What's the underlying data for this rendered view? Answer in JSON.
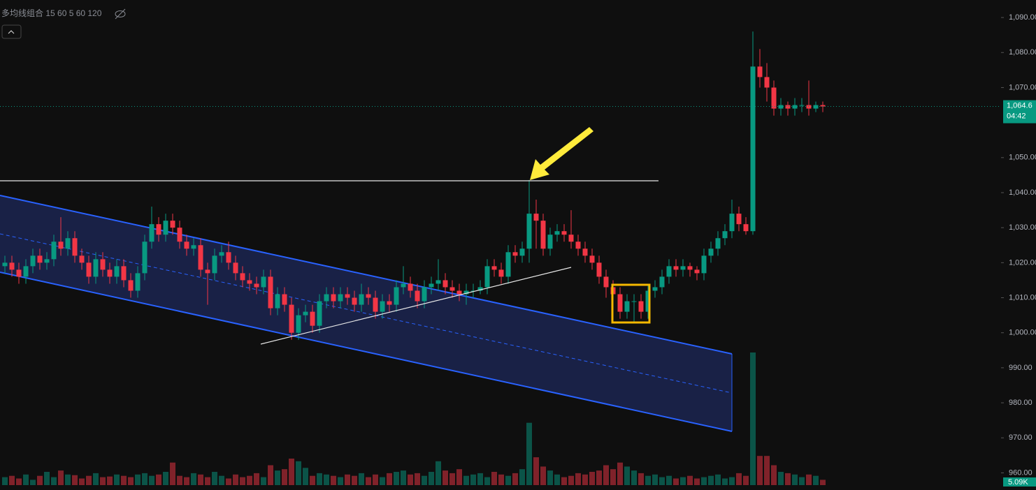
{
  "chart_data": {
    "type": "candlestick",
    "indicator_label": "多均线组合 15 60 5 60 120",
    "open": [
      1019,
      1020,
      1018,
      1016,
      1019,
      1022,
      1020,
      1021,
      1026,
      1024,
      1027,
      1022,
      1020,
      1016,
      1021,
      1018,
      1016,
      1019,
      1015,
      1012,
      1017,
      1026,
      1031,
      1028,
      1032,
      1030,
      1026,
      1024,
      1025,
      1018,
      1017,
      1022,
      1023,
      1020,
      1017,
      1015,
      1014,
      1013,
      1016,
      1007,
      1011,
      1008,
      1000,
      1005,
      1006,
      1002,
      1009,
      1011,
      1009,
      1011,
      1010,
      1008,
      1011,
      1010,
      1006,
      1009,
      1008,
      1013,
      1014,
      1012,
      1009,
      1013,
      1014,
      1015,
      1013,
      1012,
      1011,
      1012,
      1012,
      1013,
      1019,
      1018,
      1016,
      1023,
      1022,
      1024,
      1034,
      1032,
      1024,
      1028,
      1029,
      1028,
      1026,
      1024,
      1022,
      1020,
      1016,
      1013,
      1011,
      1006,
      1009,
      1009,
      1006,
      1012,
      1013,
      1016,
      1019,
      1018,
      1019,
      1018,
      1017,
      1022,
      1024,
      1027,
      1029,
      1034,
      1031,
      1029,
      1076,
      1073,
      1070,
      1064,
      1065,
      1064,
      1065,
      1065,
      1064,
      1065
    ],
    "high": [
      1022,
      1022,
      1020,
      1021,
      1024,
      1024,
      1023,
      1028,
      1033,
      1029,
      1029,
      1024,
      1022,
      1023,
      1023,
      1020,
      1021,
      1021,
      1017,
      1019,
      1028,
      1036,
      1033,
      1034,
      1034,
      1032,
      1028,
      1027,
      1027,
      1020,
      1024,
      1025,
      1026,
      1022,
      1019,
      1017,
      1016,
      1018,
      1018,
      1013,
      1013,
      1010,
      1007,
      1008,
      1008,
      1011,
      1013,
      1013,
      1013,
      1013,
      1012,
      1014,
      1013,
      1012,
      1011,
      1011,
      1015,
      1019,
      1016,
      1014,
      1015,
      1016,
      1021,
      1017,
      1015,
      1014,
      1014,
      1014,
      1015,
      1021,
      1021,
      1020,
      1025,
      1025,
      1026,
      1043.6,
      1038,
      1034,
      1030,
      1031,
      1031,
      1035,
      1028,
      1026,
      1024,
      1022,
      1018,
      1015,
      1013,
      1011,
      1011,
      1011,
      1014,
      1015,
      1018,
      1021,
      1021,
      1021,
      1020,
      1019,
      1024,
      1026,
      1029,
      1031,
      1038,
      1036,
      1033,
      1086,
      1081,
      1077,
      1072,
      1067,
      1066,
      1067,
      1067,
      1072,
      1066,
      1066
    ],
    "low": [
      1017,
      1016,
      1014,
      1014,
      1017,
      1018,
      1018,
      1019,
      1022,
      1022,
      1020,
      1018,
      1014,
      1014,
      1016,
      1014,
      1014,
      1013,
      1010,
      1010,
      1015,
      1024,
      1026,
      1026,
      1028,
      1024,
      1022,
      1022,
      1016,
      1008,
      1015,
      1020,
      1018,
      1015,
      1013,
      1012,
      1011,
      1011,
      1005,
      1005,
      1006,
      998,
      998,
      1003,
      1000,
      1000,
      1007,
      1007,
      1007,
      1008,
      1006,
      1006,
      1008,
      1004,
      1004,
      1006,
      1006,
      1011,
      1010,
      1007,
      1007,
      1011,
      1012,
      1011,
      1010,
      1009,
      1008,
      1010,
      1011,
      1011,
      1016,
      1014,
      1014,
      1020,
      1020,
      1020,
      1024,
      1022,
      1022,
      1026,
      1026,
      1024,
      1022,
      1020,
      1018,
      1014,
      1010,
      1009,
      1004,
      1004,
      1003,
      1004,
      1004,
      1010,
      1011,
      1014,
      1016,
      1016,
      1016,
      1015,
      1015,
      1020,
      1022,
      1025,
      1027,
      1029,
      1028,
      1028,
      1070,
      1066,
      1062,
      1062,
      1062,
      1062,
      1063,
      1062,
      1063,
      1063
    ],
    "close": [
      1020,
      1018,
      1016,
      1019,
      1022,
      1020,
      1021,
      1026,
      1024,
      1027,
      1022,
      1020,
      1016,
      1021,
      1018,
      1016,
      1019,
      1015,
      1012,
      1017,
      1026,
      1031,
      1028,
      1032,
      1030,
      1026,
      1024,
      1025,
      1018,
      1017,
      1022,
      1023,
      1020,
      1017,
      1015,
      1014,
      1013,
      1016,
      1007,
      1011,
      1008,
      1000,
      1005,
      1006,
      1002,
      1009,
      1011,
      1009,
      1011,
      1010,
      1008,
      1011,
      1010,
      1006,
      1009,
      1008,
      1013,
      1014,
      1012,
      1009,
      1013,
      1014,
      1015,
      1013,
      1012,
      1011,
      1012,
      1012,
      1013,
      1019,
      1018,
      1016,
      1023,
      1022,
      1024,
      1034,
      1032,
      1024,
      1028,
      1029,
      1028,
      1026,
      1024,
      1022,
      1020,
      1016,
      1013,
      1011,
      1006,
      1009,
      1009,
      1006,
      1012,
      1013,
      1016,
      1019,
      1018,
      1019,
      1018,
      1017,
      1022,
      1024,
      1027,
      1029,
      1034,
      1031,
      1029,
      1076,
      1073,
      1070,
      1064,
      1065,
      1064,
      1065,
      1065,
      1064,
      1065,
      1064.6
    ],
    "volume": [
      12,
      14,
      10,
      16,
      8,
      14,
      20,
      12,
      22,
      16,
      15,
      10,
      14,
      18,
      12,
      13,
      16,
      14,
      12,
      16,
      18,
      14,
      16,
      20,
      34,
      14,
      12,
      18,
      16,
      12,
      20,
      14,
      10,
      16,
      12,
      14,
      18,
      12,
      30,
      22,
      24,
      40,
      36,
      26,
      14,
      18,
      16,
      14,
      12,
      16,
      14,
      18,
      12,
      16,
      12,
      18,
      20,
      22,
      16,
      18,
      14,
      20,
      36,
      22,
      18,
      24,
      14,
      16,
      18,
      12,
      20,
      16,
      14,
      18,
      24,
      94,
      42,
      28,
      22,
      16,
      12,
      14,
      18,
      16,
      20,
      22,
      30,
      24,
      34,
      28,
      22,
      18,
      14,
      16,
      12,
      14,
      10,
      12,
      14,
      10,
      12,
      14,
      16,
      10,
      12,
      18,
      14,
      200,
      44,
      44,
      30,
      20,
      18,
      16,
      12,
      16,
      14,
      8
    ],
    "vlim": [
      0,
      200
    ],
    "ylim": [
      956.1,
      1095
    ],
    "yticks": [
      {
        "value": 960,
        "label": "960.00"
      },
      {
        "value": 970,
        "label": "970.00"
      },
      {
        "value": 980,
        "label": "980.00"
      },
      {
        "value": 990,
        "label": "990.00"
      },
      {
        "value": 1000,
        "label": "1,000.00"
      },
      {
        "value": 1010,
        "label": "1,010.00"
      },
      {
        "value": 1020,
        "label": "1,020.00"
      },
      {
        "value": 1030,
        "label": "1,030.00"
      },
      {
        "value": 1040,
        "label": "1,040.00"
      },
      {
        "value": 1050,
        "label": "1,050.00"
      },
      {
        "value": 1070,
        "label": "1,070.00"
      },
      {
        "value": 1080,
        "label": "1,080.00"
      },
      {
        "value": 1090,
        "label": "1,090.00"
      }
    ],
    "last_price": {
      "value": 1064.6,
      "label": "1,064.6"
    },
    "countdown": "04:42",
    "volume_label": "5.09K",
    "up_color": "#089981",
    "down_color": "#f23645"
  }
}
